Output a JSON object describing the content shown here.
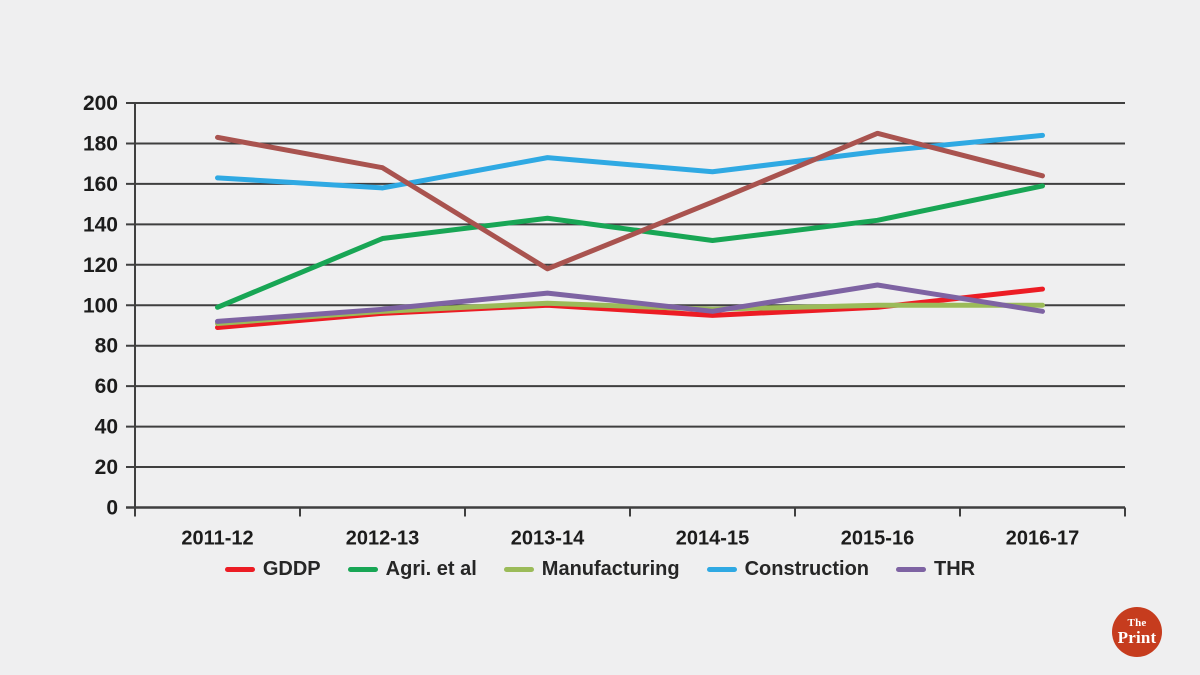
{
  "page_background": "#efeff0",
  "chart_data": {
    "type": "line",
    "title": "",
    "categories": [
      "2011-12",
      "2012-13",
      "2013-14",
      "2014-15",
      "2015-16",
      "2016-17"
    ],
    "xlabel": "",
    "ylabel": "",
    "y_axis": {
      "min": 0,
      "max": 200,
      "step": 20
    },
    "grid": "horizontal-on",
    "legend_position": "bottom",
    "axis_color": "#3f3f3f",
    "grid_color": "#3f3f3f",
    "series": [
      {
        "name": "GDDP",
        "color": "#ec1c24",
        "legend_visible": true,
        "values": [
          89,
          96,
          100,
          95,
          99,
          108
        ]
      },
      {
        "name": "Agri. et al",
        "color": "#18a655",
        "legend_visible": true,
        "values": [
          99,
          133,
          143,
          132,
          142,
          159
        ]
      },
      {
        "name": "Manufacturing",
        "color": "#9bbb59",
        "legend_visible": true,
        "values": [
          91,
          97,
          101,
          98,
          100,
          100
        ]
      },
      {
        "name": "Construction",
        "color": "#2fa9e3",
        "legend_visible": true,
        "values": [
          163,
          158,
          173,
          166,
          176,
          184
        ]
      },
      {
        "name": "THR",
        "color": "#7e63a3",
        "legend_visible": true,
        "values": [
          92,
          98,
          106,
          97,
          110,
          97
        ]
      },
      {
        "name": "",
        "color": "#a9534f",
        "legend_visible": false,
        "values": [
          183,
          168,
          118,
          151,
          185,
          164
        ]
      }
    ]
  },
  "branding": {
    "logo_text_top": "The",
    "logo_text_bottom": "Print",
    "logo_bg_color": "#c63c1e"
  }
}
